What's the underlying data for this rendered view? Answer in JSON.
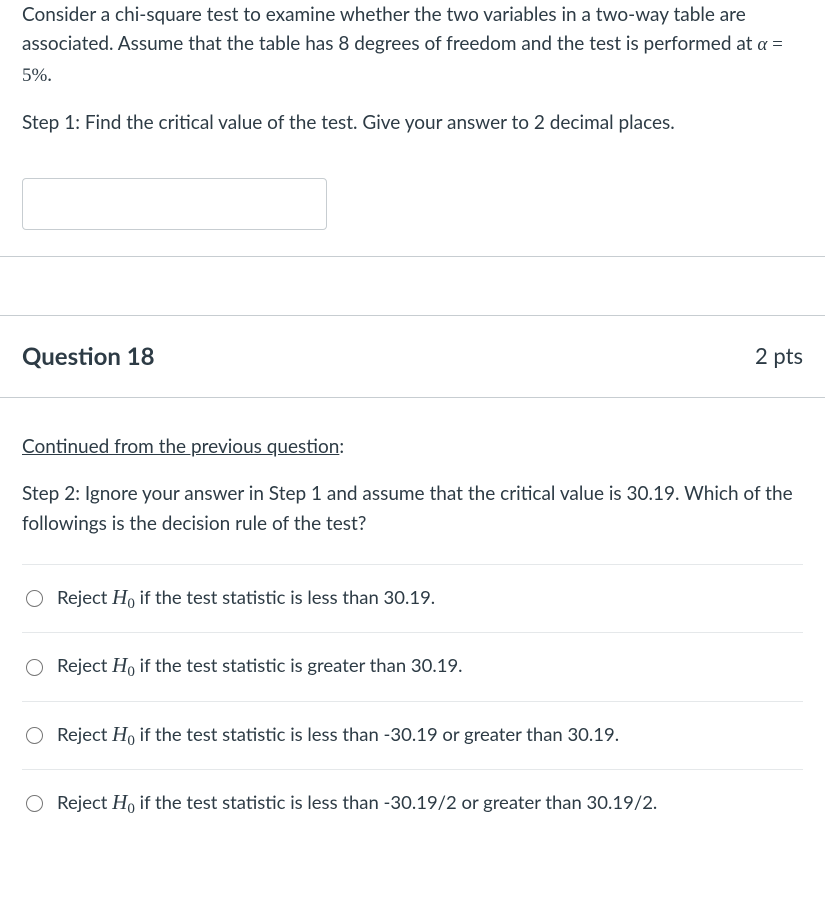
{
  "q17": {
    "intro_pre": "Consider a chi-square test to examine whether the two variables in a two-way table are associated. Assume that the table has 8 degrees of freedom and the test is performed at ",
    "alpha_var": "α",
    "alpha_eq": " = 5%",
    "period": ".",
    "step1": "Step 1: Find the critical value of the test. Give your answer to 2 decimal places.",
    "input_value": ""
  },
  "q18": {
    "number": "Question 18",
    "points": "2 pts",
    "continued": "Continued from the previous question",
    "continued_colon": ":",
    "step2": "Step 2: Ignore your answer in Step 1 and assume that the critical value is 30.19. Which of the followings is the decision rule of the test?",
    "reject_label": "Reject ",
    "h0": "H",
    "h0_sub": "0",
    "options": [
      " if the test statistic is less than 30.19.",
      " if the test statistic is greater than 30.19.",
      " if the test statistic is less than -30.19 or greater than 30.19.",
      " if the test statistic is less than -30.19/2 or greater than 30.19/2."
    ]
  }
}
